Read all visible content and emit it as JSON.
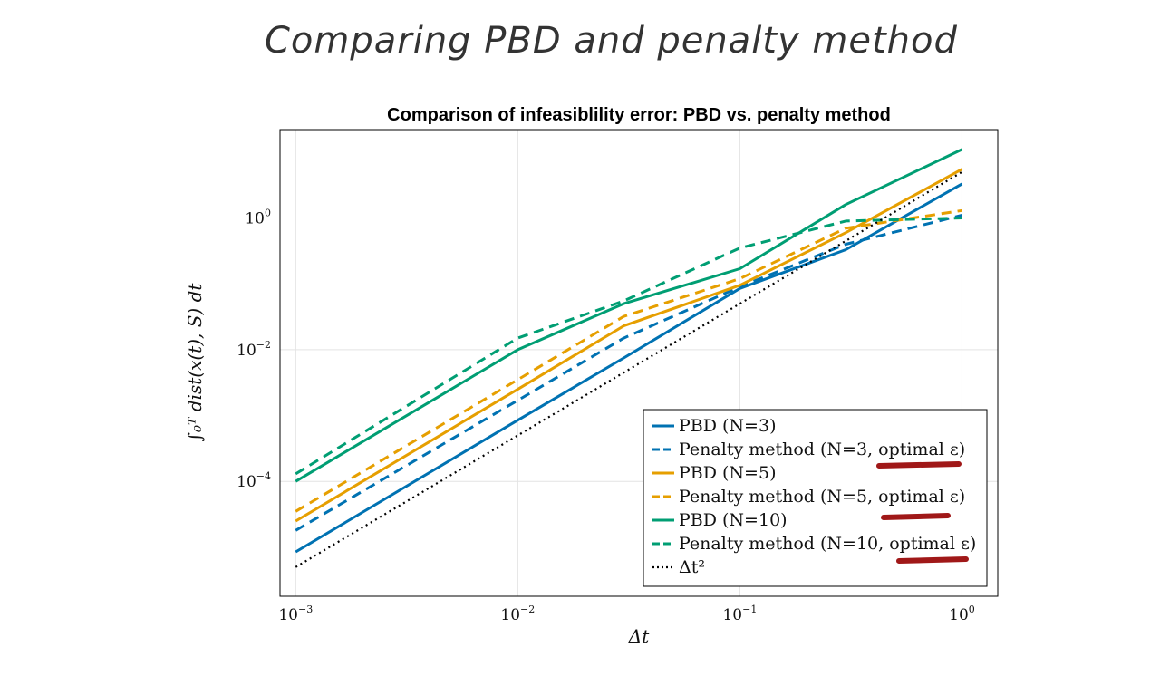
{
  "page": {
    "handwritten_title": "Comparing PBD and penalty method"
  },
  "chart_data": {
    "type": "line",
    "title": "Comparison of infeasiblility error: PBD vs. penalty method",
    "xlabel": "Δt",
    "ylabel": "∫₀ᵀ dist(x(t), S) dt",
    "xscale": "log",
    "yscale": "log",
    "xlim": [
      0.00085,
      1.45
    ],
    "ylim": [
      1.8e-06,
      22
    ],
    "x_ticks": [
      {
        "value": 0.001,
        "base": "10",
        "exp": "−3"
      },
      {
        "value": 0.01,
        "base": "10",
        "exp": "−2"
      },
      {
        "value": 0.1,
        "base": "10",
        "exp": "−1"
      },
      {
        "value": 1,
        "base": "10",
        "exp": "0"
      }
    ],
    "y_ticks": [
      {
        "value": 0.0001,
        "base": "10",
        "exp": "−4"
      },
      {
        "value": 0.01,
        "base": "10",
        "exp": "−2"
      },
      {
        "value": 1,
        "base": "10",
        "exp": "0"
      }
    ],
    "grid": true,
    "legend_position": "bottom-right",
    "series": [
      {
        "name": "PBD (N=3)",
        "color": "#0072B2",
        "dash": "solid",
        "x": [
          0.001,
          0.01,
          0.03,
          0.1,
          0.3,
          1.0
        ],
        "y": [
          8.5e-06,
          0.00085,
          0.0075,
          0.085,
          0.33,
          3.3
        ]
      },
      {
        "name": "Penalty method (N=3, optimal ε)",
        "color": "#0072B2",
        "dash": "dashed",
        "x": [
          0.001,
          0.01,
          0.03,
          0.1,
          0.3,
          1.0
        ],
        "y": [
          1.8e-05,
          0.0017,
          0.015,
          0.09,
          0.4,
          1.1
        ]
      },
      {
        "name": "PBD (N=5)",
        "color": "#E69F00",
        "dash": "solid",
        "x": [
          0.001,
          0.01,
          0.03,
          0.1,
          0.3,
          1.0
        ],
        "y": [
          2.5e-05,
          0.0025,
          0.023,
          0.095,
          0.6,
          5.5
        ]
      },
      {
        "name": "Penalty method (N=5, optimal ε)",
        "color": "#E69F00",
        "dash": "dashed",
        "x": [
          0.001,
          0.01,
          0.03,
          0.1,
          0.3,
          1.0
        ],
        "y": [
          3.5e-05,
          0.0035,
          0.032,
          0.12,
          0.7,
          1.3
        ]
      },
      {
        "name": "PBD (N=10)",
        "color": "#009E73",
        "dash": "solid",
        "x": [
          0.001,
          0.01,
          0.03,
          0.1,
          0.3,
          1.0
        ],
        "y": [
          0.0001,
          0.01,
          0.05,
          0.17,
          1.6,
          11
        ]
      },
      {
        "name": "Penalty method (N=10, optimal ε)",
        "color": "#009E73",
        "dash": "dashed",
        "x": [
          0.001,
          0.01,
          0.03,
          0.1,
          0.3,
          1.0
        ],
        "y": [
          0.00013,
          0.015,
          0.055,
          0.35,
          0.9,
          1.0
        ]
      },
      {
        "name": "Δt²",
        "color": "#000000",
        "dash": "dotted",
        "x": [
          0.001,
          1.0
        ],
        "y": [
          5e-06,
          5
        ]
      }
    ]
  }
}
